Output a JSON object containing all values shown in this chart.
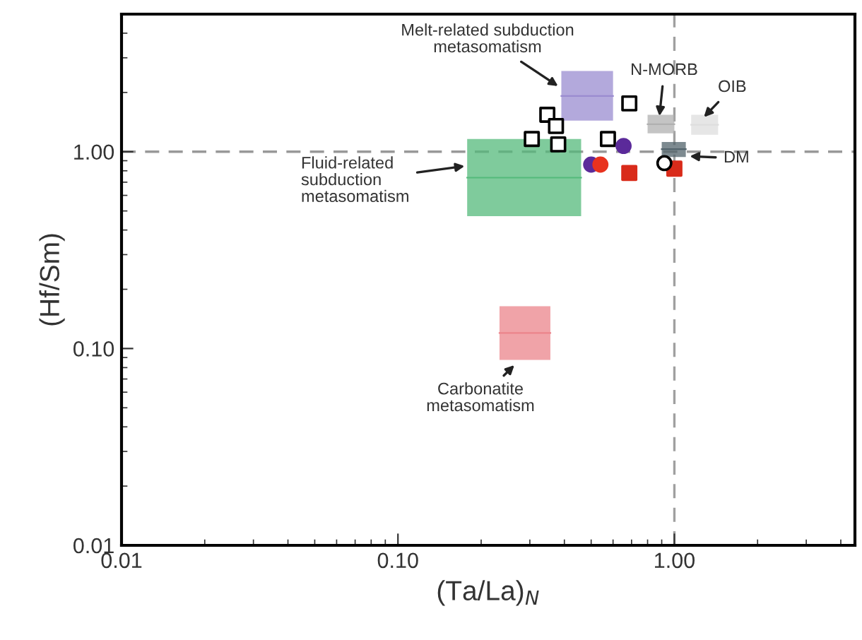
{
  "chart_data": {
    "type": "scatter",
    "xlabel": "(Ta/La)$_{N}$",
    "ylabel": "(Hf/Sm)",
    "log": "xy",
    "grid": false,
    "legend": false,
    "xlim": [
      0.01,
      4.5
    ],
    "ylim": [
      0.01,
      5
    ],
    "xticks": [
      {
        "value": 0.01,
        "label": "0.01"
      },
      {
        "value": 0.1,
        "label": "0.10"
      },
      {
        "value": 1,
        "label": "1.00"
      }
    ],
    "yticks": [
      {
        "value": 0.01,
        "label": "0.01"
      },
      {
        "value": 0.1,
        "label": "0.10"
      },
      {
        "value": 1,
        "label": "1.00"
      }
    ],
    "ref_lines": [
      {
        "axis": "x",
        "value": 1,
        "color": "#a0a0a0",
        "line_style": "dashed"
      },
      {
        "axis": "y",
        "value": 1,
        "color": "#999999",
        "line_style": "dashed"
      }
    ],
    "series": [
      {
        "type": "line",
        "color": "#54ba7b",
        "x": [
          0.178,
          0.46
        ],
        "values": [
          0.738,
          0.738
        ],
        "lower": [
          0.47,
          0.47
        ],
        "upper": [
          1.16,
          1.16
        ]
      },
      {
        "type": "line",
        "color": "#eb848b",
        "x": [
          0.233,
          0.356
        ],
        "values": [
          0.12,
          0.12
        ],
        "lower": [
          0.0875,
          0.0875
        ],
        "upper": [
          0.164,
          0.164
        ]
      },
      {
        "type": "line",
        "color": "#9a8cd0",
        "x": [
          0.39,
          0.6
        ],
        "values": [
          1.92,
          1.92
        ],
        "lower": [
          1.44,
          1.44
        ],
        "upper": [
          2.57,
          2.57
        ]
      },
      {
        "type": "line",
        "color": "#b0b0b0",
        "x": [
          0.8,
          1.0
        ],
        "values": [
          1.38,
          1.38
        ],
        "lower": [
          1.24,
          1.24
        ],
        "upper": [
          1.54,
          1.54
        ]
      },
      {
        "type": "line",
        "color": "#dedede",
        "x": [
          1.15,
          1.44
        ],
        "values": [
          1.37,
          1.37
        ],
        "lower": [
          1.22,
          1.22
        ],
        "upper": [
          1.54,
          1.54
        ]
      },
      {
        "type": "line",
        "color": "#52636b",
        "x": [
          0.9,
          1.1
        ],
        "values": [
          1.03,
          1.03
        ],
        "lower": [
          0.94,
          0.94
        ],
        "upper": [
          1.12,
          1.12
        ]
      },
      {
        "marker": "square",
        "color": "#ffffff",
        "x": [
          0.305,
          0.347,
          0.373,
          0.38,
          0.575,
          0.687
        ],
        "values": [
          1.16,
          1.54,
          1.35,
          1.09,
          1.16,
          1.76
        ]
      },
      {
        "marker": "circle",
        "color": "#5b2a9a",
        "x": [
          0.655,
          0.5
        ],
        "values": [
          1.07,
          0.86
        ]
      },
      {
        "marker": "circle",
        "color": "#e8321e",
        "x": [
          0.54
        ],
        "values": [
          0.86
        ]
      },
      {
        "marker": "square",
        "color": "#d92b1a",
        "x": [
          0.687,
          1.0
        ],
        "values": [
          0.78,
          0.82
        ]
      },
      {
        "marker": "circle",
        "color": "#ffffff",
        "x": [
          0.92
        ],
        "values": [
          0.875
        ]
      }
    ],
    "annotations": [
      {
        "text": "Melt-related subduction\nmetasomatism",
        "x": 0.39,
        "y": 2.1
      },
      {
        "text": "N-MORB",
        "x": 0.88,
        "y": 1.45
      },
      {
        "text": "OIB",
        "x": 1.25,
        "y": 1.45
      },
      {
        "text": "Fluid-related\nsubduction\nmetasomatism",
        "x": 0.18,
        "y": 0.85
      },
      {
        "text": "DM",
        "x": 1.1,
        "y": 0.95
      },
      {
        "text": "Carbonatite\nmetasomatism",
        "x": 0.27,
        "y": 0.085
      }
    ]
  }
}
